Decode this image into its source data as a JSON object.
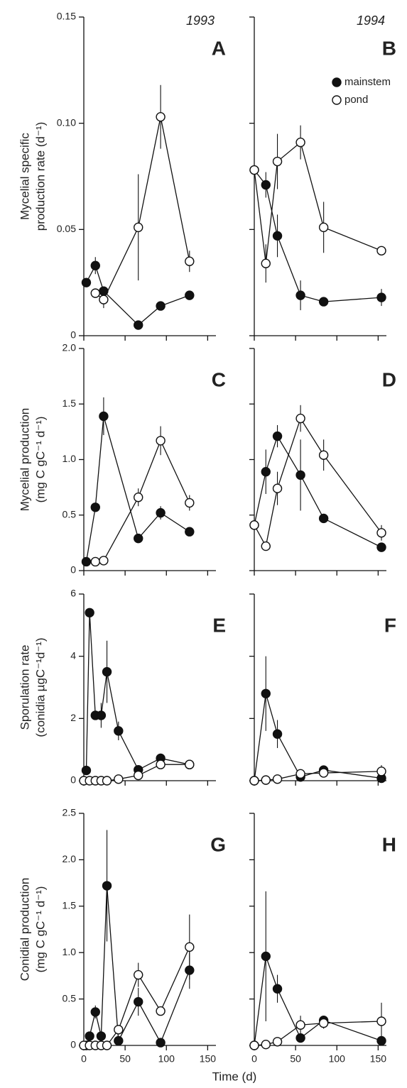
{
  "chart_data": [
    {
      "type": "line",
      "title": "A",
      "subtitle": "1993",
      "ylabel": [
        "Mycelial specific",
        "production rate (d⁻¹)"
      ],
      "xlim": [
        0,
        160
      ],
      "xticks": [
        0,
        50,
        100,
        150
      ],
      "xtick_labels": false,
      "ylim": [
        0,
        0.15
      ],
      "yticks": [
        0,
        0.05,
        {
          "value": 0.1,
          "label": "0.10"
        },
        0.15
      ],
      "ytick_labels": true,
      "series": [
        {
          "color": "#111",
          "marker_fill": "#111",
          "x": [
            3,
            14,
            24,
            66,
            93,
            128
          ],
          "values": [
            0.025,
            0.033,
            0.021,
            0.005,
            0.014,
            0.019
          ],
          "errors": [
            null,
            0.004,
            null,
            null,
            null,
            null
          ]
        },
        {
          "color": "#111",
          "marker_fill": "#fff",
          "x": [
            14,
            24,
            66,
            93,
            128
          ],
          "values": [
            0.02,
            0.017,
            0.051,
            0.103,
            0.035
          ],
          "errors": [
            null,
            0.004,
            0.025,
            0.015,
            0.005
          ]
        }
      ]
    },
    {
      "type": "line",
      "title": "B",
      "subtitle": "1994",
      "legend": "upper right",
      "xlim": [
        0,
        160
      ],
      "xticks": [
        0,
        50,
        100,
        150
      ],
      "xtick_labels": false,
      "ylim": [
        0,
        0.15
      ],
      "yticks": [
        0,
        0.05,
        0.1,
        0.15
      ],
      "ytick_labels": false,
      "series": [
        {
          "name": "mainstem",
          "color": "#111",
          "marker_fill": "#111",
          "x": [
            0,
            14,
            28,
            56,
            84,
            154
          ],
          "values": [
            0.078,
            0.071,
            0.047,
            0.019,
            0.016,
            0.018
          ],
          "errors": [
            null,
            0.006,
            0.01,
            0.007,
            null,
            0.004
          ]
        },
        {
          "name": "pond",
          "color": "#111",
          "marker_fill": "#fff",
          "x": [
            0,
            14,
            28,
            56,
            84,
            154
          ],
          "values": [
            0.078,
            0.034,
            0.082,
            0.091,
            0.051,
            0.04
          ],
          "errors": [
            null,
            0.009,
            0.013,
            0.008,
            0.012,
            null
          ]
        }
      ]
    },
    {
      "type": "line",
      "title": "C",
      "ylabel": [
        "Mycelial production",
        "(mg C gC⁻¹ d⁻¹)"
      ],
      "xlim": [
        0,
        160
      ],
      "xticks": [
        0,
        50,
        100,
        150
      ],
      "xtick_labels": false,
      "ylim": [
        0,
        2
      ],
      "yticks": [
        0,
        0.5,
        {
          "value": 1,
          "label": "1.0"
        },
        1.5,
        {
          "value": 2,
          "label": "2.0"
        }
      ],
      "ytick_labels": true,
      "series": [
        {
          "color": "#111",
          "marker_fill": "#111",
          "x": [
            3,
            14,
            24,
            66,
            93,
            128
          ],
          "values": [
            0.08,
            0.57,
            1.39,
            0.29,
            0.52,
            0.35
          ],
          "errors": [
            null,
            null,
            0.17,
            null,
            0.06,
            null
          ]
        },
        {
          "color": "#111",
          "marker_fill": "#fff",
          "x": [
            14,
            24,
            66,
            93,
            128
          ],
          "values": [
            0.08,
            0.09,
            0.66,
            1.17,
            0.61
          ],
          "errors": [
            null,
            null,
            0.08,
            0.13,
            0.07
          ]
        }
      ]
    },
    {
      "type": "line",
      "title": "D",
      "xlim": [
        0,
        160
      ],
      "xticks": [
        0,
        50,
        100,
        150
      ],
      "xtick_labels": false,
      "ylim": [
        0,
        2
      ],
      "yticks": [
        0,
        0.5,
        1,
        1.5,
        2
      ],
      "ytick_labels": false,
      "series": [
        {
          "color": "#111",
          "marker_fill": "#111",
          "x": [
            0,
            14,
            28,
            56,
            84,
            154
          ],
          "values": [
            0.41,
            0.89,
            1.21,
            0.86,
            0.47,
            0.21
          ],
          "errors": [
            null,
            0.2,
            0.1,
            0.32,
            null,
            null
          ]
        },
        {
          "color": "#111",
          "marker_fill": "#fff",
          "x": [
            0,
            14,
            28,
            56,
            84,
            154
          ],
          "values": [
            0.41,
            0.22,
            0.74,
            1.37,
            1.04,
            0.34
          ],
          "errors": [
            null,
            null,
            0.15,
            0.12,
            0.14,
            0.07
          ]
        }
      ]
    },
    {
      "type": "line",
      "title": "E",
      "ylabel": [
        "Sporulation rate",
        "(conidia µgC⁻¹d⁻¹)"
      ],
      "xlim": [
        0,
        160
      ],
      "xticks": [
        0,
        50,
        100,
        150
      ],
      "xtick_labels": false,
      "ylim": [
        0,
        6
      ],
      "yticks": [
        0,
        2,
        4,
        6
      ],
      "ytick_labels": true,
      "series": [
        {
          "color": "#111",
          "marker_fill": "#111",
          "x": [
            3,
            7,
            14,
            21,
            28,
            42,
            66,
            93,
            128
          ],
          "values": [
            0.33,
            5.4,
            2.1,
            2.1,
            3.5,
            1.6,
            0.35,
            0.72,
            0.52
          ],
          "errors": [
            null,
            null,
            null,
            0.4,
            1.0,
            0.3,
            null,
            0.15,
            0.12
          ]
        },
        {
          "color": "#111",
          "marker_fill": "#fff",
          "x": [
            0,
            7,
            14,
            21,
            28,
            42,
            66,
            93,
            128
          ],
          "values": [
            0,
            0,
            0,
            0,
            0,
            0.05,
            0.17,
            0.52,
            0.52
          ],
          "errors": [
            null,
            null,
            null,
            null,
            null,
            null,
            null,
            0.1,
            null
          ]
        }
      ]
    },
    {
      "type": "line",
      "title": "F",
      "xlim": [
        0,
        160
      ],
      "xticks": [
        0,
        50,
        100,
        150
      ],
      "xtick_labels": false,
      "ylim": [
        0,
        6
      ],
      "yticks": [
        0,
        2,
        4,
        6
      ],
      "ytick_labels": false,
      "series": [
        {
          "color": "#111",
          "marker_fill": "#111",
          "x": [
            0,
            14,
            28,
            56,
            84,
            154
          ],
          "values": [
            0,
            2.8,
            1.5,
            0.12,
            0.34,
            0.08
          ],
          "errors": [
            null,
            1.2,
            0.45,
            null,
            null,
            null
          ]
        },
        {
          "color": "#111",
          "marker_fill": "#fff",
          "x": [
            0,
            14,
            28,
            56,
            84,
            154
          ],
          "values": [
            0,
            0.02,
            0.05,
            0.22,
            0.25,
            0.3
          ],
          "errors": [
            null,
            null,
            null,
            null,
            null,
            0.2
          ]
        }
      ]
    },
    {
      "type": "line",
      "title": "G",
      "ylabel": [
        "Conidial production",
        "(mg C gC⁻¹ d⁻¹)"
      ],
      "xlabel": "Time (d)",
      "xlim": [
        0,
        160
      ],
      "xticks": [
        0,
        50,
        100,
        150
      ],
      "xtick_labels": true,
      "ylim": [
        0,
        2.5
      ],
      "yticks": [
        0,
        0.5,
        {
          "value": 1,
          "label": "1.0"
        },
        1.5,
        {
          "value": 2,
          "label": "2.0"
        },
        2.5
      ],
      "ytick_labels": true,
      "series": [
        {
          "color": "#111",
          "marker_fill": "#111",
          "x": [
            3,
            7,
            14,
            21,
            28,
            42,
            66,
            93,
            128
          ],
          "values": [
            0,
            0.1,
            0.36,
            0.1,
            1.72,
            0.05,
            0.47,
            0.03,
            0.81
          ],
          "errors": [
            null,
            null,
            0.07,
            null,
            0.6,
            null,
            0.15,
            null,
            0.2
          ]
        },
        {
          "color": "#111",
          "marker_fill": "#fff",
          "x": [
            0,
            7,
            14,
            21,
            28,
            42,
            66,
            93,
            128
          ],
          "values": [
            0,
            0,
            0,
            0,
            0,
            0.17,
            0.76,
            0.37,
            1.06
          ],
          "errors": [
            null,
            null,
            null,
            null,
            null,
            0.05,
            0.13,
            null,
            0.35
          ]
        }
      ]
    },
    {
      "type": "line",
      "title": "H",
      "xlim": [
        0,
        160
      ],
      "xticks": [
        0,
        50,
        100,
        150
      ],
      "xtick_labels": true,
      "ylim": [
        0,
        2.5
      ],
      "yticks": [
        0,
        0.5,
        1,
        1.5,
        2,
        2.5
      ],
      "ytick_labels": false,
      "series": [
        {
          "color": "#111",
          "marker_fill": "#111",
          "x": [
            0,
            14,
            28,
            56,
            84,
            154
          ],
          "values": [
            0,
            0.96,
            0.61,
            0.08,
            0.27,
            0.05
          ],
          "errors": [
            null,
            0.7,
            0.15,
            null,
            null,
            null
          ]
        },
        {
          "color": "#111",
          "marker_fill": "#fff",
          "x": [
            0,
            14,
            28,
            56,
            84,
            154
          ],
          "values": [
            0,
            0.01,
            0.04,
            0.22,
            0.24,
            0.26
          ],
          "errors": [
            null,
            null,
            null,
            0.1,
            0.06,
            0.2
          ]
        }
      ]
    }
  ]
}
